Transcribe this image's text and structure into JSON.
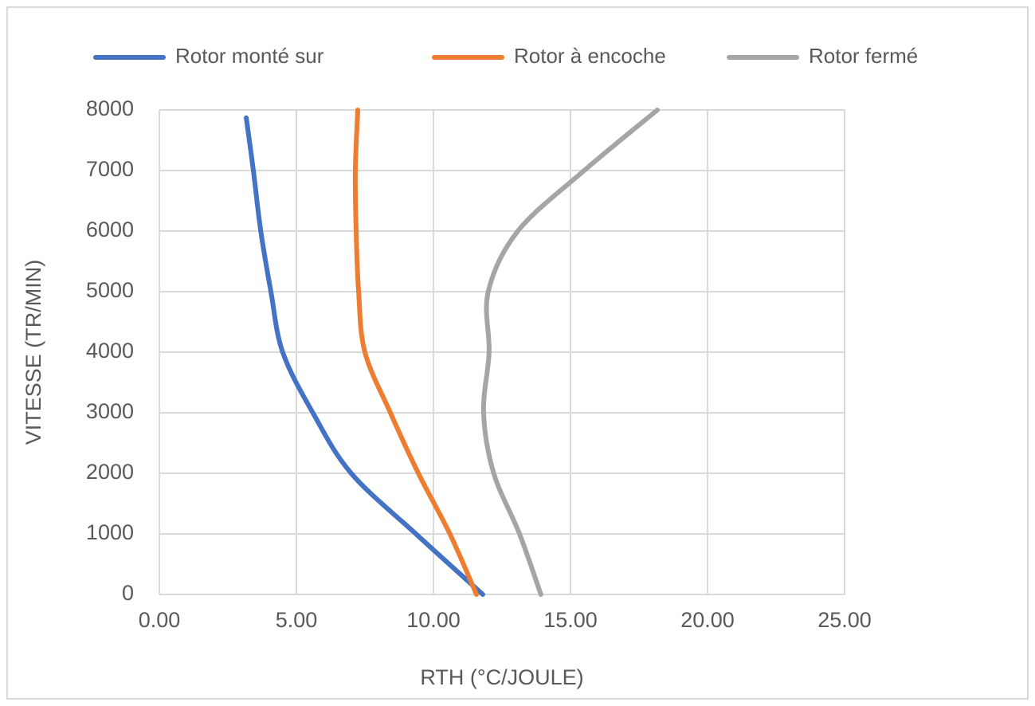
{
  "chart_data": {
    "type": "line",
    "x_label": "RTH (°C/JOULE)",
    "y_label": "VITESSE (TR/MIN)",
    "xlim": [
      0,
      25
    ],
    "xticks": [
      {
        "value": 0,
        "label": "0.00"
      },
      {
        "value": 5,
        "label": "5.00"
      },
      {
        "value": 10,
        "label": "10.00"
      },
      {
        "value": 15,
        "label": "15.00"
      },
      {
        "value": 20,
        "label": "20.00"
      },
      {
        "value": 25,
        "label": "25.00"
      }
    ],
    "ylim": [
      0,
      8000
    ],
    "yticks": [
      0,
      1000,
      2000,
      3000,
      4000,
      5000,
      6000,
      7000,
      8000
    ],
    "grid": true,
    "legend": "top",
    "series": [
      {
        "name": "Rotor monté sur",
        "color": "#4472c4",
        "x": [
          11.8,
          9.36,
          7.0,
          5.6,
          4.5,
          4.07,
          3.7,
          3.43,
          3.17
        ],
        "values": [
          0,
          1000,
          2000,
          3000,
          4000,
          5000,
          6000,
          7000,
          7870
        ]
      },
      {
        "name": "Rotor à encoche",
        "color": "#ed7d31",
        "x": [
          11.57,
          10.6,
          9.45,
          8.43,
          7.5,
          7.27,
          7.18,
          7.15,
          7.24
        ],
        "values": [
          0,
          1000,
          2000,
          3000,
          4000,
          5000,
          6000,
          7000,
          8000
        ]
      },
      {
        "name": "Rotor fermé",
        "color": "#a5a5a5",
        "x": [
          13.92,
          13.14,
          12.2,
          11.83,
          12.03,
          12.0,
          13.08,
          15.5,
          18.17
        ],
        "values": [
          0,
          1000,
          2000,
          3000,
          4000,
          5000,
          6000,
          7000,
          8000
        ]
      }
    ]
  }
}
